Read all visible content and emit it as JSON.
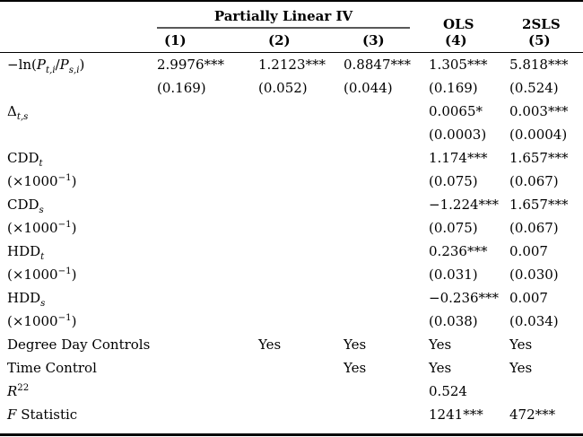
{
  "colors": {
    "text": "#000000",
    "rule": "#000000",
    "spanner_rule": "#595959",
    "background": "#ffffff"
  },
  "table": {
    "spanner_label": "Partially Linear IV",
    "group_labels": {
      "ols": "OLS",
      "tsls": "2SLS"
    },
    "column_numbers": [
      "(1)",
      "(2)",
      "(3)",
      "(4)",
      "(5)"
    ],
    "rows": [
      {
        "label_html": "−ln(<i>P</i><sub><i>t,i</i></sub>/<i>P</i><sub><i>s,i</i></sub>)",
        "cells": [
          "2.9976***",
          "1.2123***",
          "0.8847***",
          "1.305***",
          "5.818***"
        ]
      },
      {
        "label_html": "",
        "cells": [
          "(0.169)",
          "(0.052)",
          "(0.044)",
          "(0.169)",
          "(0.524)"
        ]
      },
      {
        "label_html": "Δ<sub><i>t,s</i></sub>",
        "cells": [
          "",
          "",
          "",
          "0.0065*",
          "0.003***"
        ]
      },
      {
        "label_html": "",
        "cells": [
          "",
          "",
          "",
          "(0.0003)",
          "(0.0004)"
        ]
      },
      {
        "label_html": "CDD<sub><i>t</i></sub>",
        "cells": [
          "",
          "",
          "",
          "1.174***",
          "1.657***"
        ]
      },
      {
        "label_html": "(×1000<sup>−1</sup>)",
        "cells": [
          "",
          "",
          "",
          "(0.075)",
          "(0.067)"
        ]
      },
      {
        "label_html": "CDD<sub><i>s</i></sub>",
        "cells": [
          "",
          "",
          "",
          "−1.224***",
          "1.657***"
        ]
      },
      {
        "label_html": "(×1000<sup>−1</sup>)",
        "cells": [
          "",
          "",
          "",
          "(0.075)",
          "(0.067)"
        ]
      },
      {
        "label_html": "HDD<sub><i>t</i></sub>",
        "cells": [
          "",
          "",
          "",
          "0.236***",
          "0.007"
        ]
      },
      {
        "label_html": "(×1000<sup>−1</sup>)",
        "cells": [
          "",
          "",
          "",
          "(0.031)",
          "(0.030)"
        ]
      },
      {
        "label_html": "HDD<sub><i>s</i></sub>",
        "cells": [
          "",
          "",
          "",
          "−0.236***",
          "0.007"
        ]
      },
      {
        "label_html": "(×1000<sup>−1</sup>)",
        "cells": [
          "",
          "",
          "",
          "(0.038)",
          "(0.034)"
        ]
      },
      {
        "label_html": "Degree Day Controls",
        "cells": [
          "",
          "Yes",
          "Yes",
          "Yes",
          "Yes"
        ]
      },
      {
        "label_html": "Time Control",
        "cells": [
          "",
          "",
          "Yes",
          "Yes",
          "Yes"
        ]
      },
      {
        "label_html": "<i>R</i><sup>22</sup>",
        "cells": [
          "",
          "",
          "",
          "0.524",
          ""
        ]
      },
      {
        "label_html": "<i>F</i> Statistic",
        "cells": [
          "",
          "",
          "",
          "1241***",
          "472***"
        ]
      }
    ]
  }
}
